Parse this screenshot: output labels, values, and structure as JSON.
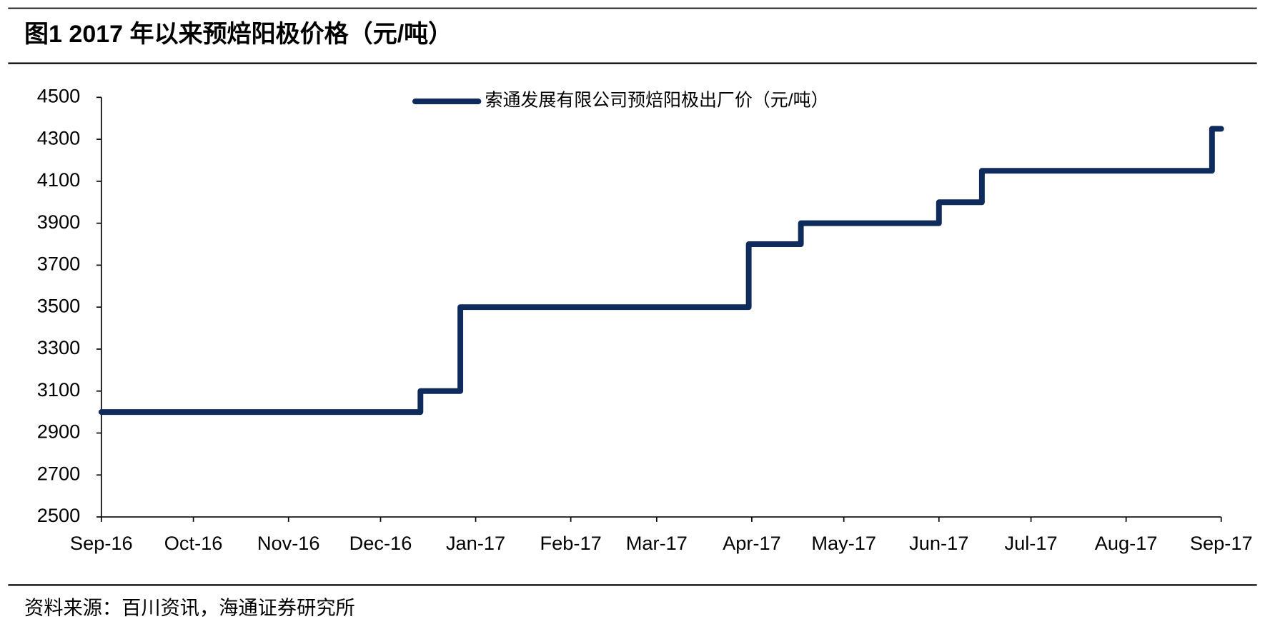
{
  "chart_data": {
    "type": "line",
    "title": "图1  2017 年以来预焙阳极价格（元/吨）",
    "source": "资料来源：百川资讯，海通证券研究所",
    "x": [
      0,
      104,
      104,
      117,
      117,
      211,
      211,
      228,
      228,
      273,
      273,
      287,
      287,
      362,
      362,
      365
    ],
    "series": [
      {
        "name": "索通发展有限公司预焙阳极出厂价（元/吨）",
        "color": "#0f2b5c",
        "values": [
          3000,
          3000,
          3100,
          3100,
          3500,
          3500,
          3800,
          3800,
          3900,
          3900,
          4000,
          4000,
          4150,
          4150,
          4350,
          4350
        ]
      }
    ],
    "xlim": [
      0,
      365
    ],
    "xticks": [
      {
        "value": 0,
        "label": "Sep-16"
      },
      {
        "value": 30,
        "label": "Oct-16"
      },
      {
        "value": 61,
        "label": "Nov-16"
      },
      {
        "value": 91,
        "label": "Dec-16"
      },
      {
        "value": 122,
        "label": "Jan-17"
      },
      {
        "value": 153,
        "label": "Feb-17"
      },
      {
        "value": 181,
        "label": "Mar-17"
      },
      {
        "value": 212,
        "label": "Apr-17"
      },
      {
        "value": 242,
        "label": "May-17"
      },
      {
        "value": 273,
        "label": "Jun-17"
      },
      {
        "value": 303,
        "label": "Jul-17"
      },
      {
        "value": 334,
        "label": "Aug-17"
      },
      {
        "value": 365,
        "label": "Sep-17"
      }
    ],
    "ylim": [
      2500,
      4500
    ],
    "yticks": [
      2500,
      2700,
      2900,
      3100,
      3300,
      3500,
      3700,
      3900,
      4100,
      4300,
      4500
    ],
    "legend": "top"
  }
}
